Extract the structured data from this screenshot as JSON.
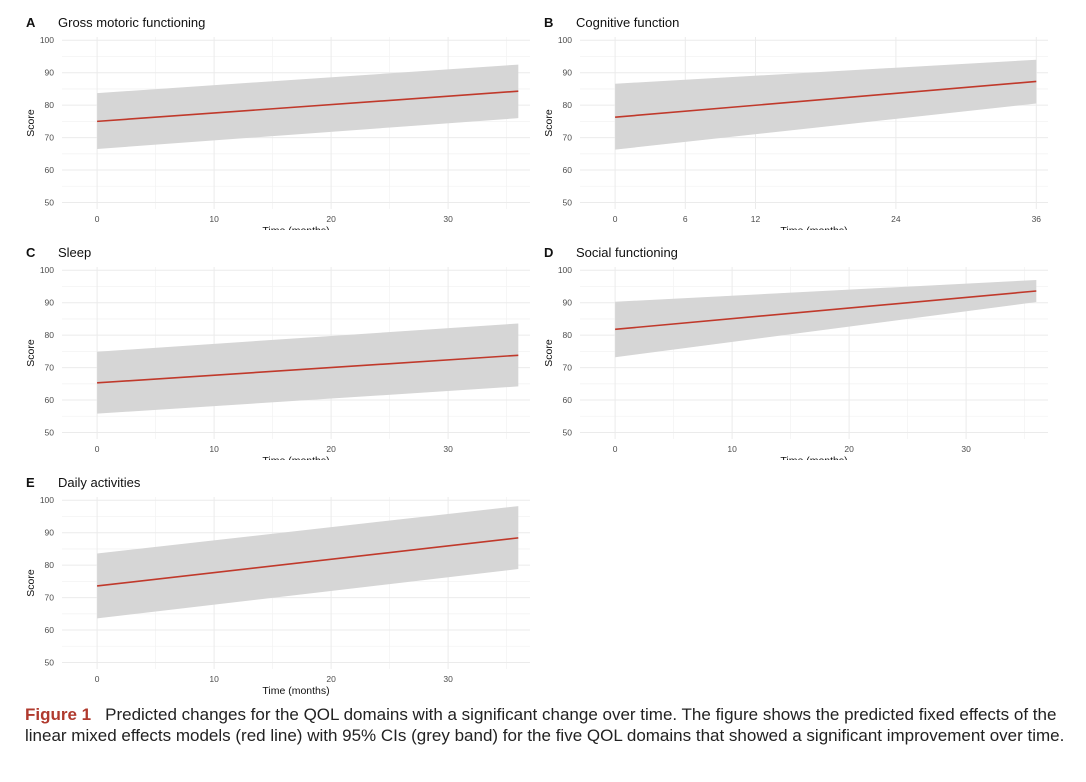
{
  "colors": {
    "line": "#c0392b",
    "band": "#d6d6d6",
    "grid": "#ebebeb",
    "figure_label": "#b03a2e"
  },
  "chart_data": [
    {
      "type": "line",
      "letter": "A",
      "title": "Gross motoric functioning",
      "xlabel": "Time (months)",
      "ylabel": "Score",
      "xlim": [
        -3,
        37
      ],
      "ylim": [
        48,
        101
      ],
      "xticks": [
        0,
        10,
        20,
        30
      ],
      "yticks": [
        50,
        60,
        70,
        80,
        90,
        100
      ],
      "x": [
        0,
        36
      ],
      "fit": [
        75,
        84.3
      ],
      "ci_lower": [
        66.5,
        76
      ],
      "ci_upper": [
        83.7,
        92.5
      ]
    },
    {
      "type": "line",
      "letter": "B",
      "title": "Cognitive function",
      "xlabel": "Time (months)",
      "ylabel": "Score",
      "xlim": [
        -3,
        37
      ],
      "ylim": [
        48,
        101
      ],
      "xticks": [
        0,
        6,
        12,
        24,
        36
      ],
      "yticks": [
        50,
        60,
        70,
        80,
        90,
        100
      ],
      "x": [
        0,
        36
      ],
      "fit": [
        76.3,
        87.3
      ],
      "ci_lower": [
        66.3,
        80.5
      ],
      "ci_upper": [
        86.6,
        94
      ]
    },
    {
      "type": "line",
      "letter": "C",
      "title": "Sleep",
      "xlabel": "Time (months)",
      "ylabel": "Score",
      "xlim": [
        -3,
        37
      ],
      "ylim": [
        48,
        101
      ],
      "xticks": [
        0,
        10,
        20,
        30
      ],
      "yticks": [
        50,
        60,
        70,
        80,
        90,
        100
      ],
      "x": [
        0,
        36
      ],
      "fit": [
        65.3,
        73.8
      ],
      "ci_lower": [
        55.8,
        64.2
      ],
      "ci_upper": [
        74.9,
        83.6
      ]
    },
    {
      "type": "line",
      "letter": "D",
      "title": "Social functioning",
      "xlabel": "Time (months)",
      "ylabel": "Score",
      "xlim": [
        -3,
        37
      ],
      "ylim": [
        48,
        101
      ],
      "xticks": [
        0,
        10,
        20,
        30
      ],
      "yticks": [
        50,
        60,
        70,
        80,
        90,
        100
      ],
      "x": [
        0,
        36
      ],
      "fit": [
        81.8,
        93.6
      ],
      "ci_lower": [
        73.2,
        90.2
      ],
      "ci_upper": [
        90.3,
        97
      ]
    },
    {
      "type": "line",
      "letter": "E",
      "title": "Daily activities",
      "xlabel": "Time (months)",
      "ylabel": "Score",
      "xlim": [
        -3,
        37
      ],
      "ylim": [
        48,
        101
      ],
      "xticks": [
        0,
        10,
        20,
        30
      ],
      "yticks": [
        50,
        60,
        70,
        80,
        90,
        100
      ],
      "x": [
        0,
        36
      ],
      "fit": [
        73.6,
        88.4
      ],
      "ci_lower": [
        63.6,
        78.8
      ],
      "ci_upper": [
        83.6,
        98.2
      ]
    }
  ],
  "caption": {
    "label": "Figure 1",
    "text": "Predicted changes for the QOL domains with a significant change over time. The figure shows the predicted fixed effects of the linear mixed effects models (red line) with 95% CIs (grey band) for the five QOL domains that showed a significant improvement over time."
  }
}
